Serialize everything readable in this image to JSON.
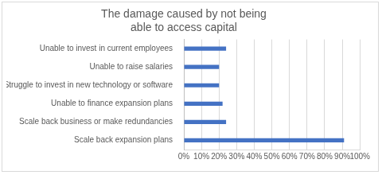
{
  "chart_data": {
    "type": "bar",
    "orientation": "horizontal",
    "title": [
      "The damage caused by not being",
      "able to access capital"
    ],
    "categories": [
      "Unable to invest in current employees",
      "Unable to raise salaries",
      "Struggle to invest in new technology or software",
      "Unable to finance expansion plans",
      "Scale back business or make redundancies",
      "Scale back expansion plans"
    ],
    "values": [
      24,
      20,
      20,
      22,
      24,
      91
    ],
    "color": "#4472c4",
    "xlim": [
      0,
      100
    ],
    "xticks": [
      {
        "value": 0,
        "label": "0%"
      },
      {
        "value": 10,
        "label": "10%"
      },
      {
        "value": 20,
        "label": "20%"
      },
      {
        "value": 30,
        "label": "30%"
      },
      {
        "value": 40,
        "label": "40%"
      },
      {
        "value": 50,
        "label": "50%"
      },
      {
        "value": 60,
        "label": "60%"
      },
      {
        "value": 70,
        "label": "70%"
      },
      {
        "value": 80,
        "label": "80%"
      },
      {
        "value": 90,
        "label": "90%"
      },
      {
        "value": 100,
        "label": "100%"
      }
    ],
    "grid": true
  }
}
